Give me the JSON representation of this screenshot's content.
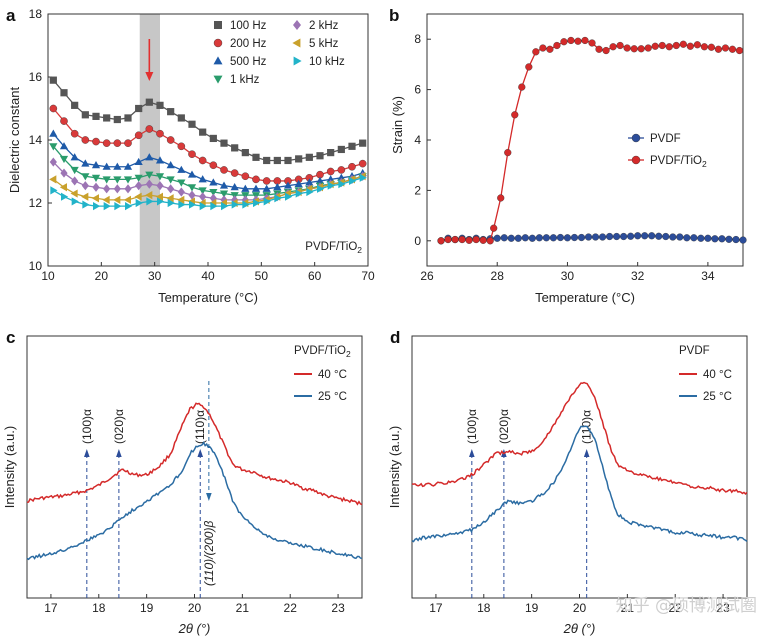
{
  "colors": {
    "100Hz": "#555555",
    "200Hz": "#d93a3a",
    "500Hz": "#1e5aa8",
    "1kHz": "#2a9c6c",
    "2kHz": "#9c74b4",
    "5kHz": "#c9a12c",
    "10kHz": "#22b3c9",
    "red": "#d42a2a",
    "blue": "#2b6ca3",
    "navy": "#2c4d9a",
    "band": "#c7c7c7",
    "arrow": "#e23030"
  },
  "chart_data": [
    {
      "panel": "a",
      "type": "line",
      "xlabel": "Temperature (°C)",
      "ylabel": "Dielectric constant",
      "xlim": [
        10,
        70
      ],
      "ylim": [
        10,
        18
      ],
      "xticks": [
        "10",
        "20",
        "30",
        "40",
        "50",
        "60",
        "70"
      ],
      "yticks": [
        "10",
        "12",
        "14",
        "16",
        "18"
      ],
      "annotation": "PVDF/TiO",
      "annotation_sub": "2",
      "highlight_band": [
        27.2,
        31
      ],
      "arrow_at": 29,
      "x": [
        11,
        13,
        15,
        17,
        19,
        21,
        23,
        25,
        27,
        29,
        31,
        33,
        35,
        37,
        39,
        41,
        43,
        45,
        47,
        49,
        51,
        53,
        55,
        57,
        59,
        61,
        63,
        65,
        67,
        69
      ],
      "series": [
        {
          "name": "100 Hz",
          "marker": "square",
          "color_key": "100Hz",
          "values": [
            15.9,
            15.5,
            15.1,
            14.8,
            14.75,
            14.7,
            14.65,
            14.7,
            15.0,
            15.2,
            15.1,
            14.9,
            14.7,
            14.5,
            14.25,
            14.05,
            13.9,
            13.75,
            13.6,
            13.45,
            13.35,
            13.35,
            13.35,
            13.4,
            13.45,
            13.5,
            13.6,
            13.7,
            13.8,
            13.9
          ]
        },
        {
          "name": "200 Hz",
          "marker": "circle",
          "color_key": "200Hz",
          "values": [
            15.0,
            14.6,
            14.2,
            14.0,
            13.95,
            13.9,
            13.9,
            13.9,
            14.15,
            14.35,
            14.2,
            14.0,
            13.8,
            13.55,
            13.35,
            13.2,
            13.05,
            12.95,
            12.85,
            12.75,
            12.7,
            12.7,
            12.7,
            12.75,
            12.8,
            12.9,
            13.0,
            13.05,
            13.15,
            13.25
          ]
        },
        {
          "name": "500 Hz",
          "marker": "triangle-up",
          "color_key": "500Hz",
          "values": [
            14.2,
            13.8,
            13.45,
            13.25,
            13.2,
            13.15,
            13.15,
            13.15,
            13.3,
            13.45,
            13.35,
            13.2,
            13.05,
            12.9,
            12.75,
            12.65,
            12.55,
            12.5,
            12.45,
            12.45,
            12.45,
            12.5,
            12.55,
            12.6,
            12.65,
            12.7,
            12.75,
            12.8,
            12.85,
            12.95
          ]
        },
        {
          "name": "1 kHz",
          "marker": "triangle-down",
          "color_key": "1kHz",
          "values": [
            13.8,
            13.4,
            13.05,
            12.85,
            12.8,
            12.75,
            12.75,
            12.75,
            12.8,
            12.9,
            12.85,
            12.75,
            12.65,
            12.5,
            12.4,
            12.35,
            12.3,
            12.25,
            12.25,
            12.25,
            12.25,
            12.3,
            12.35,
            12.4,
            12.45,
            12.55,
            12.6,
            12.65,
            12.75,
            12.85
          ]
        },
        {
          "name": "2 kHz",
          "marker": "diamond",
          "color_key": "2kHz",
          "values": [
            13.3,
            12.95,
            12.7,
            12.55,
            12.5,
            12.45,
            12.45,
            12.45,
            12.55,
            12.6,
            12.55,
            12.45,
            12.35,
            12.25,
            12.2,
            12.15,
            12.1,
            12.1,
            12.1,
            12.1,
            12.15,
            12.2,
            12.3,
            12.35,
            12.45,
            12.5,
            12.6,
            12.65,
            12.75,
            12.85
          ]
        },
        {
          "name": "5 kHz",
          "marker": "triangle-left",
          "color_key": "5kHz",
          "values": [
            12.75,
            12.5,
            12.3,
            12.2,
            12.15,
            12.1,
            12.1,
            12.1,
            12.2,
            12.25,
            12.2,
            12.15,
            12.1,
            12.05,
            12.0,
            12.0,
            12.0,
            12.0,
            12.0,
            12.05,
            12.1,
            12.2,
            12.3,
            12.35,
            12.45,
            12.5,
            12.6,
            12.65,
            12.75,
            12.85
          ]
        },
        {
          "name": "10 kHz",
          "marker": "triangle-right",
          "color_key": "10kHz",
          "values": [
            12.4,
            12.2,
            12.05,
            11.95,
            11.9,
            11.9,
            11.9,
            11.9,
            12.0,
            12.05,
            12.05,
            12.0,
            11.95,
            11.95,
            11.9,
            11.9,
            11.9,
            11.95,
            11.95,
            12.0,
            12.05,
            12.15,
            12.2,
            12.3,
            12.35,
            12.45,
            12.55,
            12.6,
            12.7,
            12.8
          ]
        }
      ]
    },
    {
      "panel": "b",
      "type": "line",
      "xlabel": "Temperature (°C)",
      "ylabel": "Strain (%)",
      "xlim": [
        26,
        35
      ],
      "ylim": [
        -1,
        9
      ],
      "xticks": [
        "26",
        "28",
        "30",
        "32",
        "34"
      ],
      "yticks": [
        "0",
        "2",
        "4",
        "6",
        "8"
      ],
      "series": [
        {
          "name": "PVDF",
          "marker": "circle",
          "color_key": "navy",
          "x": [
            26.4,
            26.6,
            26.8,
            27,
            27.2,
            27.4,
            27.6,
            27.8,
            28,
            28.2,
            28.4,
            28.6,
            28.8,
            29,
            29.2,
            29.4,
            29.6,
            29.8,
            30,
            30.2,
            30.4,
            30.6,
            30.8,
            31,
            31.2,
            31.4,
            31.6,
            31.8,
            32,
            32.2,
            32.4,
            32.6,
            32.8,
            33,
            33.2,
            33.4,
            33.6,
            33.8,
            34,
            34.2,
            34.4,
            34.6,
            34.8,
            35
          ],
          "values": [
            0.0,
            0.1,
            0.05,
            0.1,
            0.05,
            0.1,
            0.05,
            0.08,
            0.1,
            0.12,
            0.1,
            0.1,
            0.12,
            0.1,
            0.12,
            0.12,
            0.12,
            0.13,
            0.12,
            0.13,
            0.13,
            0.15,
            0.15,
            0.15,
            0.17,
            0.17,
            0.17,
            0.18,
            0.2,
            0.2,
            0.2,
            0.18,
            0.17,
            0.15,
            0.15,
            0.12,
            0.12,
            0.1,
            0.1,
            0.08,
            0.08,
            0.06,
            0.05,
            0.03
          ]
        },
        {
          "name": "PVDF/TiO",
          "name_sub": "2",
          "marker": "circle",
          "color_key": "red",
          "x": [
            26.4,
            26.6,
            26.8,
            27,
            27.2,
            27.4,
            27.6,
            27.8,
            27.9,
            28.1,
            28.3,
            28.5,
            28.7,
            28.9,
            29.1,
            29.3,
            29.5,
            29.7,
            29.9,
            30.1,
            30.3,
            30.5,
            30.7,
            30.9,
            31.1,
            31.3,
            31.5,
            31.7,
            31.9,
            32.1,
            32.3,
            32.5,
            32.7,
            32.9,
            33.1,
            33.3,
            33.5,
            33.7,
            33.9,
            34.1,
            34.3,
            34.5,
            34.7,
            34.9
          ],
          "values": [
            0.0,
            0.05,
            0.05,
            0.05,
            0.02,
            0.05,
            0.02,
            0.0,
            0.5,
            1.7,
            3.5,
            5.0,
            6.1,
            6.9,
            7.5,
            7.65,
            7.6,
            7.75,
            7.9,
            7.95,
            7.92,
            7.95,
            7.85,
            7.6,
            7.55,
            7.7,
            7.75,
            7.65,
            7.62,
            7.62,
            7.65,
            7.72,
            7.75,
            7.7,
            7.75,
            7.8,
            7.72,
            7.78,
            7.7,
            7.68,
            7.6,
            7.65,
            7.6,
            7.55
          ]
        }
      ]
    },
    {
      "panel": "c",
      "type": "line",
      "xlabel": "2θ (°)",
      "ylabel": "Intensity (a.u.)",
      "xlim": [
        16.5,
        23.5
      ],
      "ylim": [
        0,
        1
      ],
      "xticks": [
        "17",
        "18",
        "19",
        "20",
        "21",
        "22",
        "23"
      ],
      "legend_title": "PVDF/TiO",
      "legend_title_sub": "2",
      "peaks": [
        {
          "x": 17.75,
          "label": "(100)α",
          "color_key": "navy",
          "dir": "up"
        },
        {
          "x": 18.42,
          "label": "(020)α",
          "color_key": "navy",
          "dir": "up"
        },
        {
          "x": 20.12,
          "label": "(110)α",
          "color_key": "navy",
          "dir": "up"
        },
        {
          "x": 20.3,
          "label": "(110)/(200)β",
          "color_key": "blue",
          "dir": "down"
        }
      ],
      "x": [
        16.5,
        16.75,
        17,
        17.25,
        17.5,
        17.75,
        18,
        18.25,
        18.5,
        18.75,
        19,
        19.25,
        19.5,
        19.75,
        19.9,
        20.05,
        20.2,
        20.35,
        20.5,
        20.65,
        20.8,
        21,
        21.25,
        21.5,
        21.75,
        22,
        22.25,
        22.5,
        22.75,
        23,
        23.25,
        23.5
      ],
      "series": [
        {
          "name": "40 °C",
          "color_key": "red",
          "values": [
            0.37,
            0.38,
            0.385,
            0.39,
            0.4,
            0.41,
            0.43,
            0.46,
            0.49,
            0.47,
            0.47,
            0.5,
            0.55,
            0.66,
            0.72,
            0.74,
            0.73,
            0.69,
            0.63,
            0.57,
            0.51,
            0.49,
            0.48,
            0.46,
            0.45,
            0.44,
            0.42,
            0.41,
            0.39,
            0.38,
            0.37,
            0.36
          ]
        },
        {
          "name": "25 °C",
          "color_key": "blue",
          "values": [
            0.15,
            0.16,
            0.17,
            0.18,
            0.2,
            0.22,
            0.24,
            0.27,
            0.31,
            0.34,
            0.37,
            0.4,
            0.43,
            0.49,
            0.55,
            0.58,
            0.59,
            0.57,
            0.52,
            0.45,
            0.37,
            0.31,
            0.27,
            0.24,
            0.22,
            0.21,
            0.2,
            0.19,
            0.18,
            0.17,
            0.16,
            0.15
          ]
        }
      ]
    },
    {
      "panel": "d",
      "type": "line",
      "xlabel": "2θ (°)",
      "ylabel": "Intensity (a.u.)",
      "xlim": [
        16.5,
        23.5
      ],
      "ylim": [
        0,
        1
      ],
      "xticks": [
        "17",
        "18",
        "19",
        "20",
        "21",
        "22",
        "23"
      ],
      "legend_title": "PVDF",
      "peaks": [
        {
          "x": 17.75,
          "label": "(100)α",
          "color_key": "navy",
          "dir": "up"
        },
        {
          "x": 18.42,
          "label": "(020)α",
          "color_key": "navy",
          "dir": "up"
        },
        {
          "x": 20.15,
          "label": "(110)α",
          "color_key": "navy",
          "dir": "up"
        }
      ],
      "x": [
        16.5,
        16.75,
        17,
        17.25,
        17.5,
        17.75,
        18,
        18.25,
        18.5,
        18.75,
        19,
        19.25,
        19.5,
        19.75,
        19.9,
        20.05,
        20.2,
        20.35,
        20.5,
        20.65,
        20.8,
        21,
        21.25,
        21.5,
        21.75,
        22,
        22.25,
        22.5,
        22.75,
        23,
        23.25,
        23.5
      ],
      "series": [
        {
          "name": "40 °C",
          "color_key": "red",
          "values": [
            0.43,
            0.43,
            0.435,
            0.44,
            0.45,
            0.47,
            0.51,
            0.55,
            0.56,
            0.55,
            0.56,
            0.6,
            0.67,
            0.75,
            0.79,
            0.82,
            0.81,
            0.75,
            0.66,
            0.57,
            0.51,
            0.49,
            0.47,
            0.46,
            0.45,
            0.44,
            0.43,
            0.42,
            0.42,
            0.41,
            0.41,
            0.4
          ]
        },
        {
          "name": "25 °C",
          "color_key": "blue",
          "values": [
            0.22,
            0.23,
            0.235,
            0.24,
            0.25,
            0.26,
            0.29,
            0.33,
            0.37,
            0.36,
            0.37,
            0.4,
            0.45,
            0.54,
            0.61,
            0.66,
            0.65,
            0.59,
            0.49,
            0.39,
            0.32,
            0.29,
            0.28,
            0.27,
            0.26,
            0.25,
            0.25,
            0.24,
            0.24,
            0.23,
            0.23,
            0.22
          ]
        }
      ]
    }
  ],
  "panels": [
    {
      "letter": "a"
    },
    {
      "letter": "b"
    },
    {
      "letter": "c"
    },
    {
      "letter": "d"
    }
  ],
  "watermark": "知乎 @硕博测试圈"
}
